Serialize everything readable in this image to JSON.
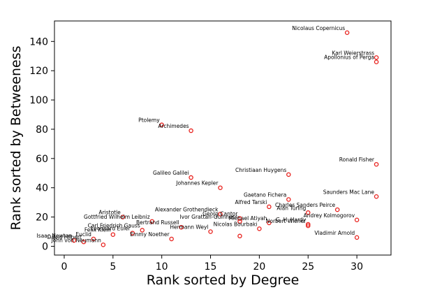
{
  "chart_data": {
    "type": "scatter",
    "title": "",
    "xlabel": "Rank sorted by Degree",
    "ylabel": "Rank sorted by Betweeness",
    "xlim": [
      -1,
      33.5
    ],
    "ylim": [
      -6,
      154
    ],
    "xticks": [
      0,
      5,
      10,
      15,
      20,
      25,
      30
    ],
    "yticks": [
      0,
      20,
      40,
      60,
      80,
      100,
      120,
      140
    ],
    "grid": false,
    "marker_color": "#e8201c",
    "points": [
      {
        "name": "Nicolaus Copernicus",
        "x": 29,
        "y": 146
      },
      {
        "name": "Karl Weierstrass",
        "x": 32,
        "y": 129
      },
      {
        "name": "Apollonius of Perga",
        "x": 32,
        "y": 126
      },
      {
        "name": "Ptolemy",
        "x": 10,
        "y": 83
      },
      {
        "name": "Archimedes",
        "x": 13,
        "y": 79
      },
      {
        "name": "Ronald Fisher",
        "x": 32,
        "y": 56
      },
      {
        "name": "Christiaan Huygens",
        "x": 23,
        "y": 49
      },
      {
        "name": "Galileo Galilei",
        "x": 13,
        "y": 47
      },
      {
        "name": "Johannes Kepler",
        "x": 16,
        "y": 40
      },
      {
        "name": "Saunders Mac Lane",
        "x": 32,
        "y": 34
      },
      {
        "name": "Gaetano Fichera",
        "x": 23,
        "y": 32
      },
      {
        "name": "Alfred Tarski",
        "x": 21,
        "y": 27
      },
      {
        "name": "Charles Sanders Peirce",
        "x": 28,
        "y": 25
      },
      {
        "name": "Alan Turing",
        "x": 25,
        "y": 23
      },
      {
        "name": "Andrey Kolmogorov",
        "x": 30,
        "y": 18
      },
      {
        "name": "Alexander Grothendieck",
        "x": 16,
        "y": 22
      },
      {
        "name": "Aristotle",
        "x": 6,
        "y": 20
      },
      {
        "name": "Georg Cantor",
        "x": 18,
        "y": 19
      },
      {
        "name": "Gottfried Wilhelm Leibniz",
        "x": 9,
        "y": 17
      },
      {
        "name": "Ivor Grattan-Guinness",
        "x": 18,
        "y": 17
      },
      {
        "name": "G. H. Hardy",
        "x": 25,
        "y": 15
      },
      {
        "name": "Michael Atiyah",
        "x": 21,
        "y": 16
      },
      {
        "name": "Norbert Wiener",
        "x": 25,
        "y": 14
      },
      {
        "name": "Bertrand Russell",
        "x": 12,
        "y": 13
      },
      {
        "name": "Carl Friedrich Gauss",
        "x": 8,
        "y": 11
      },
      {
        "name": "Hermann Weyl",
        "x": 15,
        "y": 10
      },
      {
        "name": "Leonhard Euler",
        "x": 7,
        "y": 9
      },
      {
        "name": "Felix Klein",
        "x": 5,
        "y": 8
      },
      {
        "name": "Nicolas Bourbaki",
        "x": 20,
        "y": 12
      },
      {
        "name": "Emmy Noether",
        "x": 11,
        "y": 5
      },
      {
        "name": "Vladimir Arnold",
        "x": 30,
        "y": 6
      },
      {
        "name": "Isaac Newton",
        "x": 1,
        "y": 4
      },
      {
        "name": "Euclid",
        "x": 3,
        "y": 5
      },
      {
        "name": "David Hilbert",
        "x": 2,
        "y": 3
      },
      {
        "name": "John von Neumann",
        "x": 4,
        "y": 1
      },
      {
        "name": "",
        "x": 18,
        "y": 7
      }
    ]
  }
}
